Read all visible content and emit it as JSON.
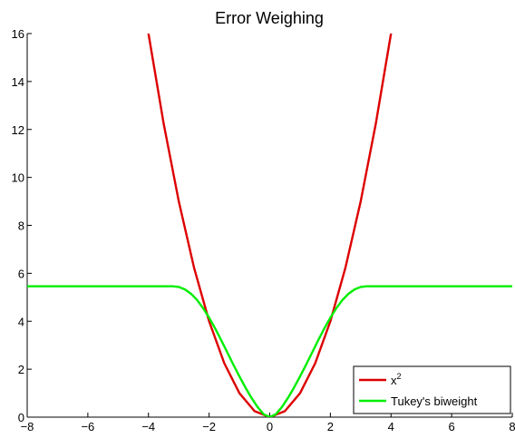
{
  "chart_data": {
    "type": "line",
    "title": "Error Weighing",
    "xlabel": "",
    "ylabel": "",
    "xlim": [
      -8,
      8
    ],
    "ylim": [
      0,
      16
    ],
    "xticks": [
      "−8",
      "−6",
      "−4",
      "−2",
      "0",
      "2",
      "4",
      "6",
      "8"
    ],
    "yticks": [
      "0",
      "2",
      "4",
      "6",
      "8",
      "10",
      "12",
      "14",
      "16"
    ],
    "grid": false,
    "legend_position": "bottom-right",
    "series": [
      {
        "name": "x²",
        "name_base": "x",
        "name_sup": "2",
        "color": "#dd0000",
        "x": [
          -4,
          -3.5,
          -3,
          -2.5,
          -2,
          -1.5,
          -1,
          -0.5,
          0,
          0.5,
          1,
          1.5,
          2,
          2.5,
          3,
          3.5,
          4
        ],
        "y": [
          16,
          12.25,
          9,
          6.25,
          4,
          2.25,
          1,
          0.25,
          0,
          0.25,
          1,
          2.25,
          4,
          6.25,
          9,
          12.25,
          16
        ]
      },
      {
        "name": "Tukey's biweight",
        "color": "#00ee00",
        "x": [
          -8,
          -4,
          -3.2,
          -3,
          -2.8,
          -2.6,
          -2.4,
          -2.2,
          -2,
          -1.8,
          -1.6,
          -1.4,
          -1.2,
          -1,
          -0.8,
          -0.6,
          -0.4,
          -0.2,
          0,
          0.2,
          0.4,
          0.6,
          0.8,
          1,
          1.2,
          1.4,
          1.6,
          1.8,
          2,
          2.2,
          2.4,
          2.6,
          2.8,
          3,
          3.2,
          4,
          8
        ],
        "y": [
          5.46,
          5.46,
          5.46,
          5.43,
          5.33,
          5.15,
          4.89,
          4.55,
          4.15,
          3.7,
          3.21,
          2.7,
          2.19,
          1.7,
          1.23,
          0.8,
          0.42,
          0.12,
          0,
          0.12,
          0.42,
          0.8,
          1.23,
          1.7,
          2.19,
          2.7,
          3.21,
          3.7,
          4.15,
          4.55,
          4.89,
          5.15,
          5.33,
          5.43,
          5.46,
          5.46,
          5.46
        ]
      }
    ]
  }
}
